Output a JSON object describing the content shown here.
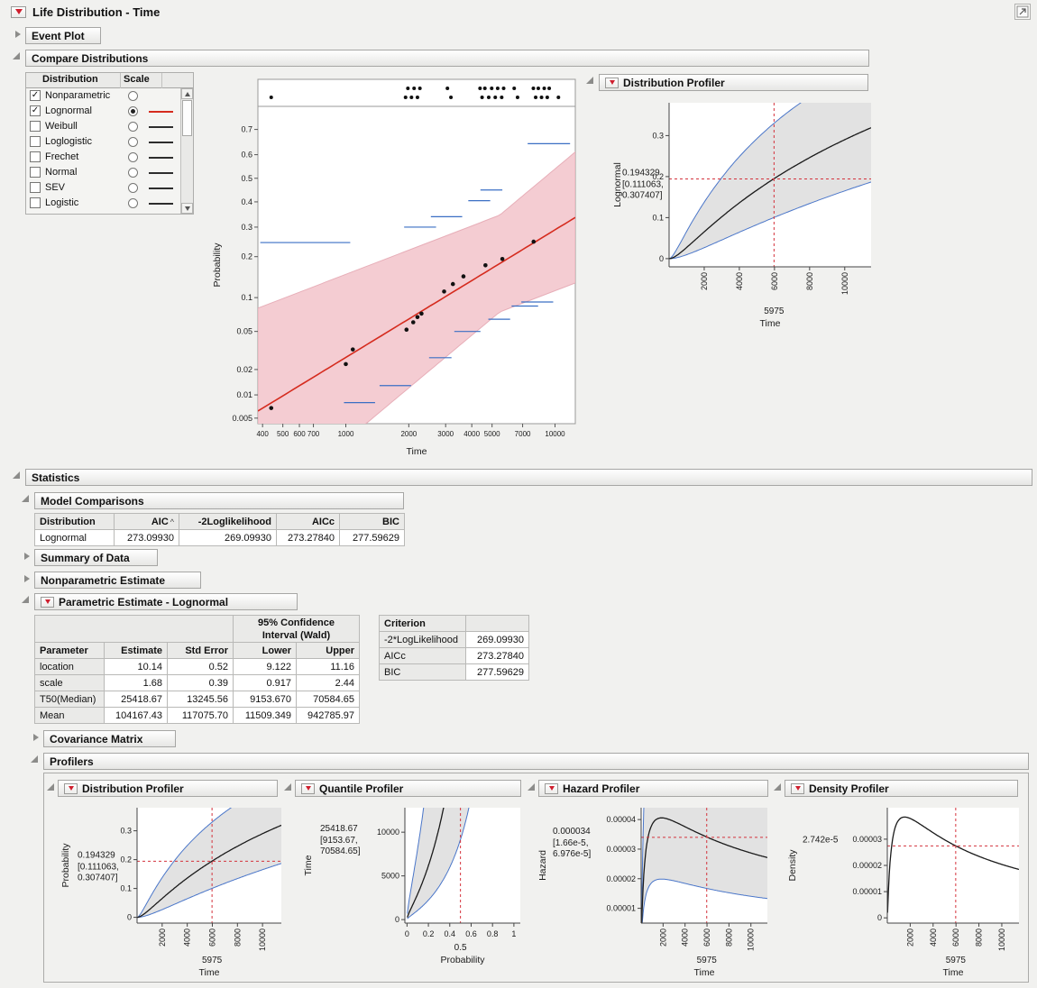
{
  "window": {
    "title": "Life Distribution - Time"
  },
  "headers": {
    "event_plot": "Event Plot",
    "compare_distributions": "Compare Distributions",
    "distribution_profiler": "Distribution Profiler",
    "statistics": "Statistics",
    "model_comparisons": "Model Comparisons",
    "summary_of_data": "Summary of Data",
    "nonparametric_estimate": "Nonparametric Estimate",
    "parametric_estimate": "Parametric Estimate - Lognormal",
    "covariance_matrix": "Covariance Matrix",
    "profilers": "Profilers",
    "quantile_profiler": "Quantile Profiler",
    "hazard_profiler": "Hazard Profiler",
    "density_profiler": "Density Profiler"
  },
  "compare": {
    "col_distribution": "Distribution",
    "col_scale": "Scale",
    "rows": [
      {
        "label": "Nonparametric",
        "checked": true,
        "selected": false,
        "line": ""
      },
      {
        "label": "Lognormal",
        "checked": true,
        "selected": true,
        "line": "#d52b1e"
      },
      {
        "label": "Weibull",
        "checked": false,
        "selected": false,
        "line": "#2d2d2d"
      },
      {
        "label": "Loglogistic",
        "checked": false,
        "selected": false,
        "line": "#2d2d2d"
      },
      {
        "label": "Frechet",
        "checked": false,
        "selected": false,
        "line": "#2d2d2d"
      },
      {
        "label": "Normal",
        "checked": false,
        "selected": false,
        "line": "#2d2d2d"
      },
      {
        "label": "SEV",
        "checked": false,
        "selected": false,
        "line": "#2d2d2d"
      },
      {
        "label": "Logistic",
        "checked": false,
        "selected": false,
        "line": "#2d2d2d"
      }
    ]
  },
  "model_comparisons": {
    "headers": [
      "Distribution",
      "AIC",
      "-2Loglikelihood",
      "AICc",
      "BIC"
    ],
    "sort_indicator": "^",
    "rows": [
      [
        "Lognormal",
        "273.09930",
        "269.09930",
        "273.27840",
        "277.59629"
      ]
    ]
  },
  "parametric": {
    "ci_line1": "95% Confidence",
    "ci_line2": "Interval (Wald)",
    "headers": [
      "Parameter",
      "Estimate",
      "Std Error",
      "Lower",
      "Upper"
    ],
    "rows": [
      [
        "location",
        "10.14",
        "0.52",
        "9.122",
        "11.16"
      ],
      [
        "scale",
        "1.68",
        "0.39",
        "0.917",
        "2.44"
      ],
      [
        "T50(Median)",
        "25418.67",
        "13245.56",
        "9153.670",
        "70584.65"
      ],
      [
        "Mean",
        "104167.43",
        "117075.70",
        "11509.349",
        "942785.97"
      ]
    ],
    "criterion_header": "Criterion",
    "criterion_rows": [
      [
        "-2*LogLikelihood",
        "269.09930"
      ],
      [
        "AICc",
        "273.27840"
      ],
      [
        "BIC",
        "277.59629"
      ]
    ]
  },
  "colors": {
    "fit_line": "#d52b1e",
    "fit_band": "#f4ccd2",
    "nonparametric": "#3a6fc4",
    "crosshair": "#d4323c",
    "profiler_band": "#e2e2e2"
  },
  "chart_data": [
    {
      "id": "probability-plot",
      "type": "line",
      "title": "Compare Distributions probability plot",
      "xlabel": "Time",
      "ylabel": "Probability",
      "x_scale": "log",
      "y_scale": "normal-probability",
      "x_range": [
        380,
        12500
      ],
      "y_range": [
        0.0042,
        0.78
      ],
      "x_ticks": [
        400,
        500,
        600,
        700,
        1000,
        2000,
        3000,
        4000,
        5000,
        7000,
        10000
      ],
      "y_ticks": [
        0.005,
        0.01,
        0.02,
        0.05,
        0.1,
        0.2,
        0.3,
        0.4,
        0.5,
        0.6,
        0.7
      ],
      "lognormal": {
        "mu": 10.14,
        "sigma": 1.68
      },
      "series": [
        {
          "name": "Lognormal fit",
          "kind": "fit-line",
          "color": "#d52b1e"
        },
        {
          "name": "Lognormal 95% CI band",
          "kind": "band",
          "color": "#f4ccd2"
        },
        {
          "name": "Nonparametric CI segments",
          "kind": "h-segments",
          "color": "#3a6fc4",
          "segments": [
            [
              390,
              1050,
              0.245
            ],
            [
              1900,
              2700,
              0.3
            ],
            [
              2550,
              3600,
              0.34
            ],
            [
              3850,
              4900,
              0.405
            ],
            [
              4400,
              5600,
              0.45
            ],
            [
              7400,
              11800,
              0.645
            ],
            [
              980,
              1380,
              0.008
            ],
            [
              1450,
              2050,
              0.013
            ],
            [
              2500,
              3200,
              0.027
            ],
            [
              3300,
              4400,
              0.05
            ],
            [
              4800,
              6100,
              0.065
            ],
            [
              6200,
              8300,
              0.085
            ],
            [
              6900,
              9800,
              0.092
            ]
          ]
        },
        {
          "name": "Nonparametric estimates",
          "kind": "points",
          "color": "#111111",
          "points": [
            [
              440,
              0.0068
            ],
            [
              1000,
              0.023
            ],
            [
              1080,
              0.033
            ],
            [
              1950,
              0.052
            ],
            [
              2100,
              0.061
            ],
            [
              2200,
              0.068
            ],
            [
              2300,
              0.073
            ],
            [
              2950,
              0.112
            ],
            [
              3250,
              0.128
            ],
            [
              3650,
              0.146
            ],
            [
              4650,
              0.175
            ],
            [
              5600,
              0.193
            ],
            [
              7900,
              0.248
            ]
          ]
        }
      ],
      "event_strip_times_row1": [
        1980,
        2120,
        2260,
        3060,
        4380,
        4620,
        4980,
        5320,
        5680,
        6380,
        7880,
        8320,
        8880,
        9380
      ],
      "event_strip_times_row2": [
        440,
        1930,
        2060,
        2200,
        3180,
        4480,
        4820,
        5180,
        5560,
        6620,
        8080,
        8620,
        9180,
        10380
      ]
    },
    {
      "id": "dist-profiler-right",
      "type": "line",
      "kind": "profiler",
      "curve": "cdf",
      "xlabel": "Time",
      "ylabel": "Lognormal",
      "x_range": [
        0,
        11500
      ],
      "y_range": [
        -0.02,
        0.38
      ],
      "x_ticks": [
        2000,
        4000,
        6000,
        8000,
        10000
      ],
      "y_ticks": [
        0,
        0.1,
        0.2,
        0.3
      ],
      "rotate_x_labels": true,
      "crosshair_x": 5975,
      "crosshair_y": 0.194329,
      "x_value_label": "5975",
      "y_value_label": "0.194329",
      "ci_line1": "[0.111063,",
      "ci_line2": "0.307407]",
      "band": true,
      "mu": 10.14,
      "sigma": 1.68
    },
    {
      "id": "dist-profiler",
      "type": "line",
      "kind": "profiler",
      "curve": "cdf",
      "xlabel": "Time",
      "ylabel": "Probability",
      "x_range": [
        0,
        11500
      ],
      "y_range": [
        -0.02,
        0.38
      ],
      "x_ticks": [
        2000,
        4000,
        6000,
        8000,
        10000
      ],
      "y_ticks": [
        0,
        0.1,
        0.2,
        0.3
      ],
      "rotate_x_labels": true,
      "crosshair_x": 5975,
      "crosshair_y": 0.194329,
      "x_value_label": "5975",
      "y_value_label": "0.194329",
      "ci_line1": "[0.111063,",
      "ci_line2": "0.307407]",
      "band": true,
      "mu": 10.14,
      "sigma": 1.68
    },
    {
      "id": "quantile-profiler",
      "type": "line",
      "kind": "profiler",
      "curve": "quantile",
      "xlabel": "Probability",
      "ylabel": "Time",
      "x_range": [
        -0.02,
        1.06
      ],
      "y_range": [
        -400,
        12800
      ],
      "x_ticks": [
        0,
        0.2,
        0.4,
        0.6,
        0.8,
        1
      ],
      "y_ticks": [
        0,
        5000,
        10000
      ],
      "rotate_x_labels": false,
      "crosshair_x": 0.5,
      "crosshair_y": 25418.67,
      "x_value_label": "0.5",
      "y_value_label": "25418.67",
      "ci_line1": "[9153.67,",
      "ci_line2": "70584.65]",
      "band": true,
      "mu": 10.14,
      "sigma": 1.68,
      "mu_low": 9.122,
      "mu_up": 11.16
    },
    {
      "id": "hazard-profiler",
      "type": "line",
      "kind": "profiler",
      "curve": "hazard",
      "xlabel": "Time",
      "ylabel": "Hazard",
      "x_range": [
        0,
        11500
      ],
      "y_range": [
        5e-06,
        4.4e-05
      ],
      "x_ticks": [
        2000,
        4000,
        6000,
        8000,
        10000
      ],
      "y_ticks": [
        1e-05,
        2e-05,
        3e-05,
        4e-05
      ],
      "rotate_x_labels": true,
      "crosshair_x": 5975,
      "crosshair_y": 3.4e-05,
      "x_value_label": "5975",
      "y_value_label": "0.000034",
      "ci_line1": "[1.66e-5,",
      "ci_line2": "6.976e-5]",
      "band": true,
      "band_low_factor": 0.49,
      "band_up_factor": 2.05,
      "mu": 10.14,
      "sigma": 1.68
    },
    {
      "id": "density-profiler",
      "type": "line",
      "kind": "profiler",
      "curve": "pdf",
      "xlabel": "Time",
      "ylabel": "Density",
      "x_range": [
        0,
        11500
      ],
      "y_range": [
        -2e-06,
        4.2e-05
      ],
      "x_ticks": [
        2000,
        4000,
        6000,
        8000,
        10000
      ],
      "y_ticks": [
        0,
        1e-05,
        2e-05,
        3e-05
      ],
      "rotate_x_labels": true,
      "crosshair_x": 5975,
      "crosshair_y": 2.742e-05,
      "x_value_label": "5975",
      "y_value_label": "2.742e-5",
      "band": false,
      "mu": 10.14,
      "sigma": 1.68
    }
  ]
}
